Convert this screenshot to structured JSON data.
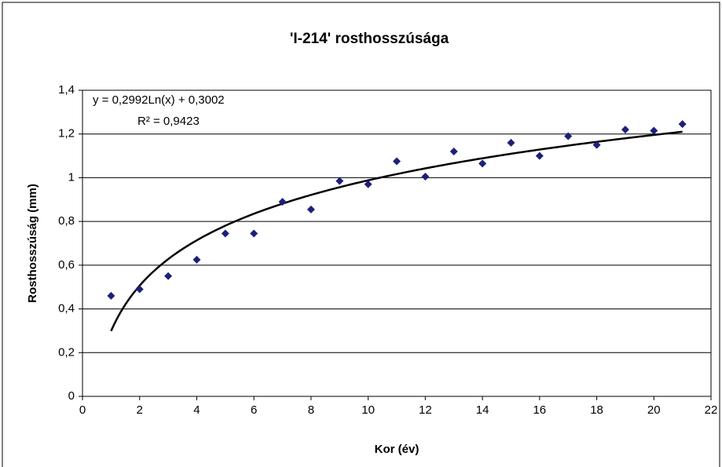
{
  "chart_data": {
    "type": "scatter",
    "title": "'I-214' rosthosszúsága",
    "x_label": "Kor (év)",
    "y_label": "Rosthosszúság (mm)",
    "trendline_equation": "y = 0,2992Ln(x) + 0,3002",
    "trendline_r2": "R² = 0,9423",
    "trendline": "logarithmic",
    "color": "#1f1f7a",
    "trendline_color": "#000000",
    "x": [
      1,
      2,
      3,
      4,
      5,
      6,
      7,
      8,
      9,
      10,
      11,
      12,
      13,
      14,
      15,
      16,
      17,
      18,
      19,
      20,
      21
    ],
    "values": [
      0.46,
      0.49,
      0.55,
      0.625,
      0.745,
      0.745,
      0.89,
      0.855,
      0.985,
      0.97,
      1.075,
      1.005,
      1.12,
      1.065,
      1.16,
      1.1,
      1.19,
      1.15,
      1.22,
      1.215,
      1.245
    ],
    "xlim": [
      0,
      22
    ],
    "xticks": [
      0,
      2,
      4,
      6,
      8,
      10,
      12,
      14,
      16,
      18,
      20,
      22
    ],
    "ylim": [
      0,
      1.4
    ],
    "yticks": [
      0,
      {
        "value": 0.2,
        "label": "0,2"
      },
      {
        "value": 0.4,
        "label": "0,4"
      },
      {
        "value": 0.6,
        "label": "0,6"
      },
      {
        "value": 0.8,
        "label": "0,8"
      },
      1,
      {
        "value": 1.2,
        "label": "1,2"
      },
      {
        "value": 1.4,
        "label": "1,4"
      }
    ],
    "grid": true
  }
}
